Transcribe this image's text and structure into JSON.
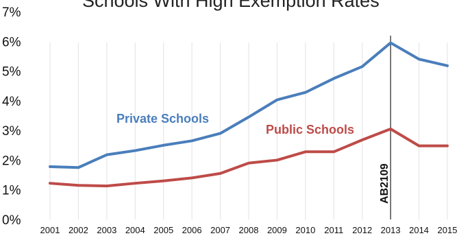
{
  "chart_data": {
    "type": "line",
    "title": "",
    "xlabel": "",
    "ylabel": "",
    "x": [
      "2001",
      "2002",
      "2003",
      "2004",
      "2005",
      "2006",
      "2007",
      "2008",
      "2009",
      "2010",
      "2011",
      "2012",
      "2013",
      "2014",
      "2015"
    ],
    "ylim": [
      0,
      7
    ],
    "yticks": [
      "0%",
      "1%",
      "2%",
      "3%",
      "4%",
      "5%",
      "6%",
      "7%"
    ],
    "grid": "vertical",
    "series": [
      {
        "name": "Private Schools",
        "color": "#4a7ebb",
        "values": [
          1.78,
          1.75,
          2.18,
          2.32,
          2.5,
          2.65,
          2.9,
          3.45,
          4.03,
          4.28,
          4.75,
          5.15,
          5.95,
          5.4,
          5.18
        ]
      },
      {
        "name": "Public Schools",
        "color": "#be4b48",
        "values": [
          1.22,
          1.15,
          1.13,
          1.22,
          1.3,
          1.4,
          1.55,
          1.9,
          2.0,
          2.28,
          2.28,
          2.68,
          3.05,
          2.48,
          2.48
        ]
      }
    ],
    "annotations": [
      {
        "text": "AB2109",
        "x": "2013"
      }
    ]
  }
}
